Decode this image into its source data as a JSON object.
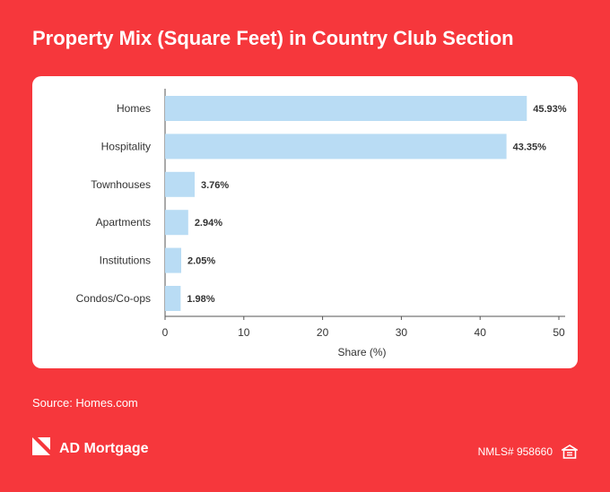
{
  "page": {
    "title": "Property Mix (Square Feet) in Country Club Section",
    "source": "Source: Homes.com",
    "brand": "AD Mortgage",
    "nmls": "NMLS# 958660",
    "logo_icon": "ad-mortgage-logo-icon",
    "housing_icon": "equal-housing-icon"
  },
  "colors": {
    "background": "#f6373c",
    "card": "#ffffff",
    "bar": "#b9dcf4",
    "text": "#333333"
  },
  "chart_data": {
    "type": "bar",
    "orientation": "horizontal",
    "categories": [
      "Homes",
      "Hospitality",
      "Townhouses",
      "Apartments",
      "Institutions",
      "Condos/Co-ops"
    ],
    "values": [
      45.93,
      43.35,
      3.76,
      2.94,
      2.05,
      1.98
    ],
    "value_labels": [
      "45.93%",
      "43.35%",
      "3.76%",
      "2.94%",
      "2.05%",
      "1.98%"
    ],
    "xlabel": "Share (%)",
    "xlim": [
      0,
      50
    ],
    "xticks": [
      "0",
      "10",
      "20",
      "30",
      "40",
      "50"
    ],
    "grid": false
  }
}
